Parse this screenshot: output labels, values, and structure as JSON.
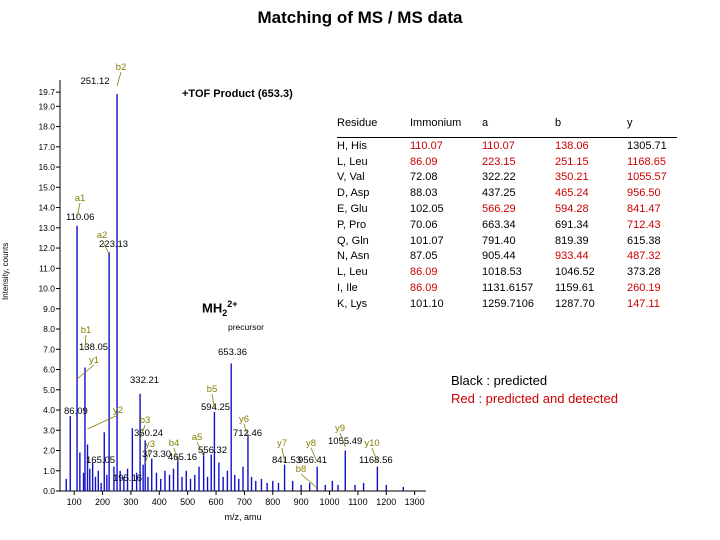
{
  "title": "Matching of  MS / MS data",
  "tof_label": "+TOF Product (653.3)",
  "chart_data": {
    "type": "bar",
    "ylabel": "Intensity, counts",
    "xlabel": "m/z, amu",
    "xlim": [
      50,
      1340
    ],
    "ylim": [
      0,
      20.3
    ],
    "xticks": [
      "100",
      "200",
      "300",
      "400",
      "500",
      "600",
      "700",
      "800",
      "900",
      "1000",
      "1100",
      "1200",
      "1300"
    ],
    "yticks": [
      "0.0",
      "1.0",
      "2.0",
      "3.0",
      "4.0",
      "5.0",
      "6.0",
      "7.0",
      "8.0",
      "9.0",
      "10.0",
      "11.0",
      "12.0",
      "13.0",
      "14.0",
      "15.0",
      "16.0",
      "17.0",
      "18.0",
      "19.0",
      "19.7"
    ],
    "peaks": [
      {
        "mz": 251.12,
        "intensity": 19.6
      },
      {
        "mz": 110.06,
        "intensity": 13.1
      },
      {
        "mz": 223.13,
        "intensity": 11.8
      },
      {
        "mz": 138.05,
        "intensity": 6.1
      },
      {
        "mz": 653.36,
        "intensity": 6.3
      },
      {
        "mz": 332.21,
        "intensity": 4.8
      },
      {
        "mz": 594.25,
        "intensity": 3.9
      },
      {
        "mz": 712.46,
        "intensity": 2.8
      },
      {
        "mz": 350.24,
        "intensity": 2.5
      },
      {
        "mz": 86.09,
        "intensity": 3.7
      },
      {
        "mz": 373.3,
        "intensity": 1.6
      },
      {
        "mz": 465.16,
        "intensity": 1.7
      },
      {
        "mz": 556.32,
        "intensity": 1.9
      },
      {
        "mz": 165.05,
        "intensity": 1.4
      },
      {
        "mz": 1055.49,
        "intensity": 2.0
      },
      {
        "mz": 1168.56,
        "intensity": 1.2
      },
      {
        "mz": 841.53,
        "intensity": 1.3
      },
      {
        "mz": 956.41,
        "intensity": 1.2
      },
      {
        "mz": 195.16,
        "intensity": 0.4
      },
      {
        "mz": 72.0,
        "intensity": 0.6
      },
      {
        "mz": 120.0,
        "intensity": 1.9
      },
      {
        "mz": 133.0,
        "intensity": 0.9
      },
      {
        "mz": 147.0,
        "intensity": 2.3
      },
      {
        "mz": 155.0,
        "intensity": 1.1
      },
      {
        "mz": 175.0,
        "intensity": 0.7
      },
      {
        "mz": 185.0,
        "intensity": 1.0
      },
      {
        "mz": 206.0,
        "intensity": 2.9
      },
      {
        "mz": 215.0,
        "intensity": 0.8
      },
      {
        "mz": 240.0,
        "intensity": 1.2
      },
      {
        "mz": 262.0,
        "intensity": 1.0
      },
      {
        "mz": 275.0,
        "intensity": 0.7
      },
      {
        "mz": 288.0,
        "intensity": 1.1
      },
      {
        "mz": 305.0,
        "intensity": 3.1
      },
      {
        "mz": 320.0,
        "intensity": 0.9
      },
      {
        "mz": 343.0,
        "intensity": 1.3
      },
      {
        "mz": 360.0,
        "intensity": 0.7
      },
      {
        "mz": 390.0,
        "intensity": 0.9
      },
      {
        "mz": 405.0,
        "intensity": 0.6
      },
      {
        "mz": 420.0,
        "intensity": 1.0
      },
      {
        "mz": 436.0,
        "intensity": 0.8
      },
      {
        "mz": 450.0,
        "intensity": 1.1
      },
      {
        "mz": 480.0,
        "intensity": 0.7
      },
      {
        "mz": 495.0,
        "intensity": 1.0
      },
      {
        "mz": 510.0,
        "intensity": 0.6
      },
      {
        "mz": 525.0,
        "intensity": 0.8
      },
      {
        "mz": 540.0,
        "intensity": 1.2
      },
      {
        "mz": 570.0,
        "intensity": 0.7
      },
      {
        "mz": 583.0,
        "intensity": 1.8
      },
      {
        "mz": 610.0,
        "intensity": 1.4
      },
      {
        "mz": 625.0,
        "intensity": 0.7
      },
      {
        "mz": 640.0,
        "intensity": 1.0
      },
      {
        "mz": 666.0,
        "intensity": 0.8
      },
      {
        "mz": 680.0,
        "intensity": 0.6
      },
      {
        "mz": 695.0,
        "intensity": 1.2
      },
      {
        "mz": 725.0,
        "intensity": 0.7
      },
      {
        "mz": 740.0,
        "intensity": 0.5
      },
      {
        "mz": 760.0,
        "intensity": 0.6
      },
      {
        "mz": 780.0,
        "intensity": 0.4
      },
      {
        "mz": 800.0,
        "intensity": 0.5
      },
      {
        "mz": 820.0,
        "intensity": 0.4
      },
      {
        "mz": 870.0,
        "intensity": 0.5
      },
      {
        "mz": 900.0,
        "intensity": 0.3
      },
      {
        "mz": 930.0,
        "intensity": 0.4
      },
      {
        "mz": 985.0,
        "intensity": 0.3
      },
      {
        "mz": 1010.0,
        "intensity": 0.5
      },
      {
        "mz": 1030.0,
        "intensity": 0.3
      },
      {
        "mz": 1090.0,
        "intensity": 0.3
      },
      {
        "mz": 1120.0,
        "intensity": 0.4
      },
      {
        "mz": 1200.0,
        "intensity": 0.3
      },
      {
        "mz": 1260.0,
        "intensity": 0.2
      }
    ],
    "annotations": [
      {
        "text": "251.12",
        "mz": 251.12
      },
      {
        "text": "110.06",
        "mz": 110.06
      },
      {
        "text": "223.13",
        "mz": 223.13
      },
      {
        "text": "138.05",
        "mz": 138.05
      },
      {
        "text": "653.36",
        "mz": 653.36
      },
      {
        "text": "332.21",
        "mz": 332.21
      },
      {
        "text": "594.25",
        "mz": 594.25
      },
      {
        "text": "712.46",
        "mz": 712.46
      },
      {
        "text": "350.24",
        "mz": 350.24
      },
      {
        "text": "86.09",
        "mz": 86.09
      },
      {
        "text": "373.30",
        "mz": 373.3
      },
      {
        "text": "465.16",
        "mz": 465.16
      },
      {
        "text": "556.32",
        "mz": 556.32
      },
      {
        "text": "165.05",
        "mz": 165.05
      },
      {
        "text": "1055.49",
        "mz": 1055.49
      },
      {
        "text": "1168.56",
        "mz": 1168.56
      },
      {
        "text": "841.53",
        "mz": 841.53
      },
      {
        "text": "956.41",
        "mz": 956.41
      },
      {
        "text": "195.16",
        "mz": 195.16
      }
    ],
    "ion_labels": [
      "b2",
      "a1",
      "a2",
      "b1",
      "y1",
      "b5",
      "y2",
      "b3",
      "y3",
      "b4",
      "a5",
      "y6",
      "y7",
      "y8",
      "y9",
      "y10",
      "b8"
    ]
  },
  "precursor": {
    "main": "MH",
    "sub": "2",
    "sup": "2+",
    "label": "precursor"
  },
  "table": {
    "headers": [
      "Residue",
      "Immonium",
      "a",
      "b",
      "y"
    ],
    "rows": [
      {
        "residue": "H, His",
        "immonium": "110.07",
        "a": "110.07",
        "b": "138.06",
        "y": "1305.71",
        "det": [
          true,
          true,
          true,
          false
        ]
      },
      {
        "residue": "L, Leu",
        "immonium": "86.09",
        "a": "223.15",
        "b": "251.15",
        "y": "1168.65",
        "det": [
          true,
          true,
          true,
          true
        ]
      },
      {
        "residue": "V, Val",
        "immonium": "72.08",
        "a": "322.22",
        "b": "350.21",
        "y": "1055.57",
        "det": [
          false,
          false,
          true,
          true
        ]
      },
      {
        "residue": "D, Asp",
        "immonium": "88.03",
        "a": "437.25",
        "b": "465.24",
        "y": "956.50",
        "det": [
          false,
          false,
          true,
          true
        ]
      },
      {
        "residue": "E, Glu",
        "immonium": "102.05",
        "a": "566.29",
        "b": "594.28",
        "y": "841.47",
        "det": [
          false,
          true,
          true,
          true
        ]
      },
      {
        "residue": "P, Pro",
        "immonium": "70.06",
        "a": "663.34",
        "b": "691.34",
        "y": "712.43",
        "det": [
          false,
          false,
          false,
          true
        ]
      },
      {
        "residue": "Q, Gln",
        "immonium": "101.07",
        "a": "791.40",
        "b": "819.39",
        "y": "615.38",
        "det": [
          false,
          false,
          false,
          false
        ]
      },
      {
        "residue": "N, Asn",
        "immonium": "87.05",
        "a": "905.44",
        "b": "933.44",
        "y": "487.32",
        "det": [
          false,
          false,
          true,
          true
        ]
      },
      {
        "residue": "L, Leu",
        "immonium": "86.09",
        "a": "1018.53",
        "b": "1046.52",
        "y": "373.28",
        "det": [
          true,
          false,
          false,
          false
        ]
      },
      {
        "residue": "I, Ile",
        "immonium": "86.09",
        "a": "1131.6157",
        "b": "1159.61",
        "y": "260.19",
        "det": [
          true,
          false,
          false,
          true
        ]
      },
      {
        "residue": "K, Lys",
        "immonium": "101.10",
        "a": "1259.7106",
        "b": "1287.70",
        "y": "147.11",
        "det": [
          false,
          false,
          false,
          true
        ]
      }
    ]
  },
  "legend": {
    "black": "Black : predicted",
    "red": "Red : predicted and detected"
  },
  "colors": {
    "peak": "#1010c8",
    "detected": "#cc0000",
    "ion_label": "#808000",
    "label_line": "#808000"
  }
}
